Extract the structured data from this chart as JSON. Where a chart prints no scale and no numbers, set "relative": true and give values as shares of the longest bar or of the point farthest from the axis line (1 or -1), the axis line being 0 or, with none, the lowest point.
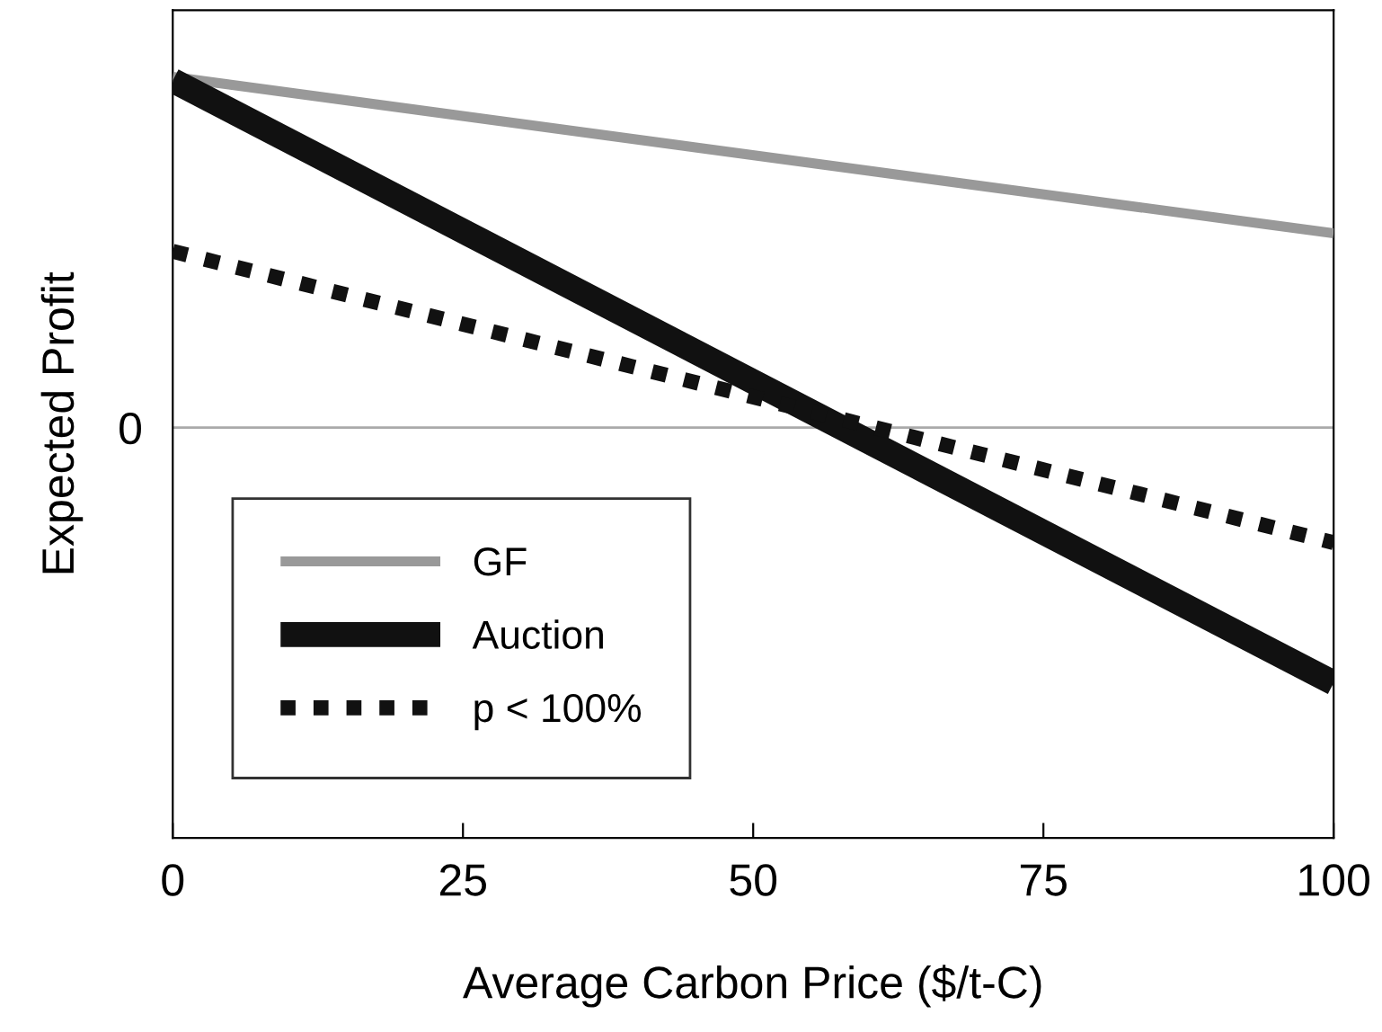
{
  "chart_data": {
    "type": "line",
    "xlabel": "Average Carbon Price ($/t-C)",
    "ylabel": "Expected Profit",
    "x": [
      0,
      100
    ],
    "xlim": [
      0,
      100
    ],
    "xticks": [
      0,
      25,
      50,
      75,
      100
    ],
    "relative": true,
    "series": [
      {
        "name": "GF",
        "color": "#999999",
        "values": [
          1,
          0.554
        ],
        "line_style": "solid"
      },
      {
        "name": "Auction",
        "color": "#111111",
        "values": [
          0.99,
          -0.728
        ],
        "line_style": "solid"
      },
      {
        "name": "p < 100%",
        "color": "#111111",
        "values": [
          0.503,
          -0.328
        ],
        "line_style": "dotted"
      }
    ],
    "ref_lines": [
      {
        "axis": "y",
        "value": 0,
        "label": "0",
        "color": "#aaaaaa"
      }
    ],
    "legend": "bottom left",
    "grid": false
  }
}
